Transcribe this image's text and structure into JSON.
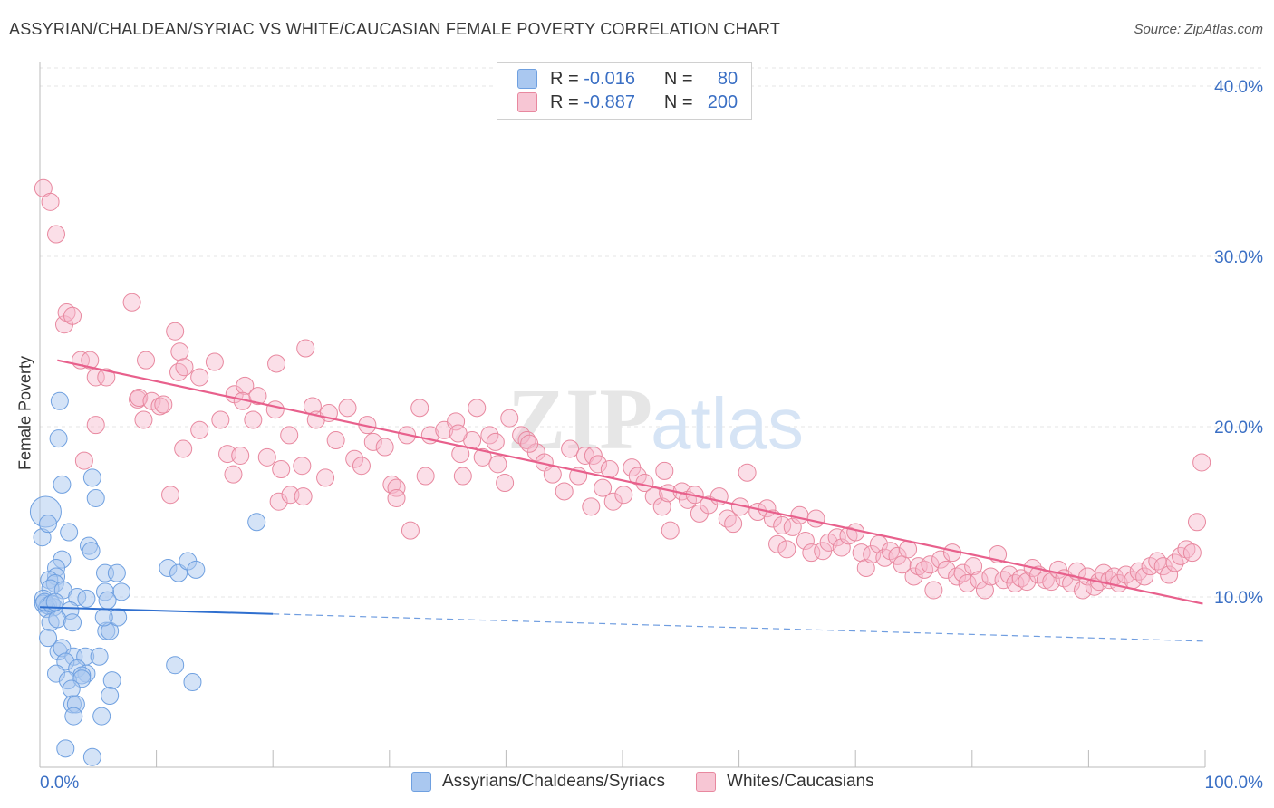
{
  "title": "ASSYRIAN/CHALDEAN/SYRIAC VS WHITE/CAUCASIAN FEMALE POVERTY CORRELATION CHART",
  "source": "Source: ZipAtlas.com",
  "watermark": "ZIPatlas",
  "legend": {
    "rows": [
      {
        "r_label": "R =",
        "r_value": "-0.016",
        "n_label": "N =",
        "n_value": "80",
        "color": "#aac8f0"
      },
      {
        "r_label": "R =",
        "r_value": "-0.887",
        "n_label": "N =",
        "n_value": "200",
        "color": "#f7b8cb"
      }
    ]
  },
  "bottom_legend": [
    {
      "label": "Assyrians/Chaldeans/Syriacs",
      "color": "#aac8f0"
    },
    {
      "label": "Whites/Caucasians",
      "color": "#f7b8cb"
    }
  ],
  "chart_data": {
    "type": "scatter",
    "ylabel": "Female Poverty",
    "xlim": [
      0,
      100
    ],
    "ylim": [
      0,
      40
    ],
    "x_tick_labels": [
      "0.0%",
      "100.0%"
    ],
    "y_ticks": [
      10,
      20,
      30,
      40
    ],
    "y_tick_labels": [
      "10.0%",
      "20.0%",
      "30.0%",
      "40.0%"
    ],
    "grid": "horizontal dashed",
    "series": [
      {
        "name": "Assyrians/Chaldeans/Syriacs",
        "color": "#6fa0e0",
        "fill": "#aac8f0",
        "trend": {
          "x0": 0,
          "y0": 9.4,
          "x1": 20,
          "y1": 9.0,
          "dash_to_x": 100,
          "dash_to_y": 7.4
        },
        "points": [
          [
            0.5,
            15
          ],
          [
            0.2,
            13.5
          ],
          [
            1.7,
            21.5
          ],
          [
            1.6,
            19.3
          ],
          [
            1.9,
            16.6
          ],
          [
            4.5,
            17.0
          ],
          [
            4.8,
            15.8
          ],
          [
            0.7,
            14.3
          ],
          [
            2.5,
            13.8
          ],
          [
            4.2,
            13.0
          ],
          [
            4.4,
            12.7
          ],
          [
            1.9,
            12.2
          ],
          [
            1.4,
            11.7
          ],
          [
            1.4,
            11.2
          ],
          [
            0.8,
            11.0
          ],
          [
            1.3,
            10.8
          ],
          [
            0.9,
            10.5
          ],
          [
            2.0,
            10.4
          ],
          [
            3.2,
            10.0
          ],
          [
            4.0,
            9.9
          ],
          [
            0.3,
            9.9
          ],
          [
            0.3,
            9.6
          ],
          [
            0.7,
            9.5
          ],
          [
            1.2,
            9.4
          ],
          [
            0.6,
            9.3
          ],
          [
            2.6,
            9.2
          ],
          [
            5.6,
            11.4
          ],
          [
            6.6,
            11.4
          ],
          [
            7.0,
            10.3
          ],
          [
            5.6,
            10.3
          ],
          [
            5.8,
            9.8
          ],
          [
            11.0,
            11.7
          ],
          [
            11.9,
            11.4
          ],
          [
            12.7,
            12.1
          ],
          [
            13.4,
            11.6
          ],
          [
            18.6,
            14.4
          ],
          [
            0.9,
            8.5
          ],
          [
            1.5,
            8.7
          ],
          [
            2.8,
            8.5
          ],
          [
            0.7,
            7.6
          ],
          [
            1.6,
            6.8
          ],
          [
            1.9,
            7.0
          ],
          [
            2.9,
            6.5
          ],
          [
            3.9,
            6.5
          ],
          [
            5.1,
            6.5
          ],
          [
            2.2,
            6.2
          ],
          [
            3.2,
            5.8
          ],
          [
            4.0,
            5.5
          ],
          [
            3.6,
            5.4
          ],
          [
            1.4,
            5.5
          ],
          [
            2.4,
            5.1
          ],
          [
            3.6,
            5.2
          ],
          [
            6.2,
            5.1
          ],
          [
            2.7,
            4.6
          ],
          [
            6.0,
            4.2
          ],
          [
            2.8,
            3.7
          ],
          [
            3.1,
            3.7
          ],
          [
            2.9,
            3.0
          ],
          [
            5.3,
            3.0
          ],
          [
            2.2,
            1.1
          ],
          [
            4.5,
            0.6
          ],
          [
            11.6,
            6.0
          ],
          [
            13.1,
            5.0
          ],
          [
            5.7,
            8.0
          ],
          [
            6.0,
            8.0
          ],
          [
            6.7,
            8.8
          ],
          [
            5.5,
            8.8
          ],
          [
            0.4,
            9.7
          ],
          [
            1.0,
            9.6
          ],
          [
            1.3,
            9.7
          ]
        ]
      },
      {
        "name": "Whites/Caucasians",
        "color": "#e8608c",
        "fill": "#f7b8cb",
        "trend": {
          "x0": 1.5,
          "y0": 23.9,
          "x1": 99.8,
          "y1": 9.6
        },
        "points": [
          [
            0.3,
            34
          ],
          [
            0.9,
            33.2
          ],
          [
            1.4,
            31.3
          ],
          [
            2.1,
            26.0
          ],
          [
            2.3,
            26.7
          ],
          [
            2.8,
            26.5
          ],
          [
            3.5,
            23.9
          ],
          [
            4.3,
            23.9
          ],
          [
            4.8,
            22.9
          ],
          [
            5.7,
            22.9
          ],
          [
            7.9,
            27.3
          ],
          [
            8.4,
            21.6
          ],
          [
            8.9,
            20.4
          ],
          [
            9.1,
            23.9
          ],
          [
            8.5,
            21.7
          ],
          [
            9.6,
            21.5
          ],
          [
            10.3,
            21.2
          ],
          [
            10.6,
            21.3
          ],
          [
            11.6,
            25.6
          ],
          [
            12.0,
            24.4
          ],
          [
            11.9,
            23.2
          ],
          [
            12.4,
            23.5
          ],
          [
            13.7,
            22.9
          ],
          [
            12.3,
            18.7
          ],
          [
            15.0,
            23.8
          ],
          [
            15.5,
            20.4
          ],
          [
            16.1,
            18.4
          ],
          [
            16.7,
            21.9
          ],
          [
            17.6,
            22.4
          ],
          [
            17.4,
            21.5
          ],
          [
            18.3,
            20.4
          ],
          [
            17.2,
            18.3
          ],
          [
            18.7,
            21.8
          ],
          [
            19.5,
            18.2
          ],
          [
            20.2,
            21.0
          ],
          [
            20.3,
            23.7
          ],
          [
            20.7,
            17.5
          ],
          [
            20.5,
            15.6
          ],
          [
            21.5,
            16.0
          ],
          [
            22.5,
            17.7
          ],
          [
            22.6,
            15.9
          ],
          [
            22.8,
            24.6
          ],
          [
            23.4,
            21.2
          ],
          [
            23.7,
            20.4
          ],
          [
            24.8,
            20.8
          ],
          [
            25.4,
            19.2
          ],
          [
            26.4,
            21.1
          ],
          [
            27.0,
            18.1
          ],
          [
            27.6,
            17.7
          ],
          [
            28.1,
            20.1
          ],
          [
            28.6,
            19.1
          ],
          [
            29.6,
            18.8
          ],
          [
            30.2,
            16.6
          ],
          [
            30.6,
            16.4
          ],
          [
            31.5,
            19.5
          ],
          [
            32.6,
            21.1
          ],
          [
            33.5,
            19.5
          ],
          [
            33.1,
            17.1
          ],
          [
            34.7,
            19.8
          ],
          [
            35.7,
            20.3
          ],
          [
            36.1,
            18.4
          ],
          [
            36.3,
            17.1
          ],
          [
            37.1,
            19.2
          ],
          [
            38.0,
            18.2
          ],
          [
            38.6,
            19.5
          ],
          [
            39.1,
            19.1
          ],
          [
            39.3,
            17.8
          ],
          [
            39.9,
            16.7
          ],
          [
            40.3,
            20.5
          ],
          [
            41.3,
            19.5
          ],
          [
            41.8,
            19.2
          ],
          [
            42.6,
            18.5
          ],
          [
            43.3,
            17.9
          ],
          [
            44.0,
            17.2
          ],
          [
            45.0,
            16.2
          ],
          [
            45.5,
            18.7
          ],
          [
            46.2,
            17.1
          ],
          [
            46.8,
            18.3
          ],
          [
            47.5,
            18.3
          ],
          [
            47.9,
            17.8
          ],
          [
            47.3,
            15.3
          ],
          [
            48.3,
            16.4
          ],
          [
            48.9,
            17.5
          ],
          [
            49.2,
            15.6
          ],
          [
            50.1,
            16.0
          ],
          [
            50.8,
            17.6
          ],
          [
            51.3,
            17.1
          ],
          [
            51.9,
            16.7
          ],
          [
            52.7,
            15.9
          ],
          [
            53.4,
            15.3
          ],
          [
            53.6,
            17.4
          ],
          [
            53.9,
            16.1
          ],
          [
            54.1,
            13.9
          ],
          [
            55.1,
            16.2
          ],
          [
            55.6,
            15.7
          ],
          [
            56.2,
            16.0
          ],
          [
            56.6,
            14.9
          ],
          [
            57.4,
            15.4
          ],
          [
            58.3,
            15.9
          ],
          [
            59.0,
            14.6
          ],
          [
            59.5,
            14.3
          ],
          [
            60.1,
            15.3
          ],
          [
            60.7,
            17.3
          ],
          [
            61.6,
            15.0
          ],
          [
            62.4,
            15.2
          ],
          [
            62.9,
            14.6
          ],
          [
            63.3,
            13.1
          ],
          [
            63.7,
            14.2
          ],
          [
            64.1,
            12.8
          ],
          [
            64.6,
            14.1
          ],
          [
            65.2,
            14.8
          ],
          [
            65.7,
            13.3
          ],
          [
            66.2,
            12.6
          ],
          [
            66.6,
            14.6
          ],
          [
            67.2,
            12.7
          ],
          [
            67.7,
            13.2
          ],
          [
            68.4,
            13.5
          ],
          [
            68.8,
            12.9
          ],
          [
            69.4,
            13.6
          ],
          [
            70.0,
            13.8
          ],
          [
            70.5,
            12.6
          ],
          [
            70.9,
            11.7
          ],
          [
            71.4,
            12.5
          ],
          [
            72.0,
            13.1
          ],
          [
            72.5,
            12.3
          ],
          [
            73.0,
            12.7
          ],
          [
            73.6,
            12.4
          ],
          [
            74.0,
            11.9
          ],
          [
            74.5,
            12.8
          ],
          [
            75.0,
            11.2
          ],
          [
            75.4,
            11.8
          ],
          [
            75.9,
            11.6
          ],
          [
            76.4,
            11.9
          ],
          [
            76.7,
            10.4
          ],
          [
            77.3,
            12.2
          ],
          [
            77.8,
            11.6
          ],
          [
            78.3,
            12.6
          ],
          [
            78.7,
            11.2
          ],
          [
            79.2,
            11.4
          ],
          [
            79.6,
            10.8
          ],
          [
            80.1,
            11.8
          ],
          [
            80.6,
            11.0
          ],
          [
            81.1,
            10.4
          ],
          [
            81.6,
            11.2
          ],
          [
            82.2,
            12.5
          ],
          [
            82.7,
            11.0
          ],
          [
            83.2,
            11.3
          ],
          [
            83.7,
            10.8
          ],
          [
            84.2,
            11.1
          ],
          [
            84.7,
            10.9
          ],
          [
            85.2,
            11.7
          ],
          [
            85.7,
            11.3
          ],
          [
            86.3,
            11.0
          ],
          [
            86.8,
            10.9
          ],
          [
            87.4,
            11.6
          ],
          [
            87.9,
            11.1
          ],
          [
            88.5,
            10.8
          ],
          [
            89.0,
            11.5
          ],
          [
            89.5,
            10.4
          ],
          [
            89.9,
            11.2
          ],
          [
            90.5,
            10.6
          ],
          [
            90.9,
            10.9
          ],
          [
            91.3,
            11.4
          ],
          [
            91.8,
            11.0
          ],
          [
            92.2,
            11.2
          ],
          [
            92.6,
            10.8
          ],
          [
            93.2,
            11.3
          ],
          [
            93.8,
            11.0
          ],
          [
            94.3,
            11.5
          ],
          [
            94.8,
            11.2
          ],
          [
            95.3,
            11.8
          ],
          [
            95.9,
            12.1
          ],
          [
            96.4,
            11.8
          ],
          [
            96.9,
            11.3
          ],
          [
            97.4,
            12.0
          ],
          [
            97.9,
            12.4
          ],
          [
            98.4,
            12.8
          ],
          [
            98.9,
            12.6
          ],
          [
            99.3,
            14.4
          ],
          [
            99.7,
            17.9
          ],
          [
            3.8,
            18.0
          ],
          [
            4.8,
            20.1
          ],
          [
            11.2,
            16.0
          ],
          [
            13.7,
            19.8
          ],
          [
            16.6,
            17.2
          ],
          [
            21.4,
            19.5
          ],
          [
            24.5,
            17.0
          ],
          [
            30.6,
            15.8
          ],
          [
            31.8,
            13.9
          ],
          [
            35.9,
            19.6
          ],
          [
            37.5,
            21.1
          ],
          [
            42.0,
            19.0
          ]
        ]
      }
    ]
  }
}
